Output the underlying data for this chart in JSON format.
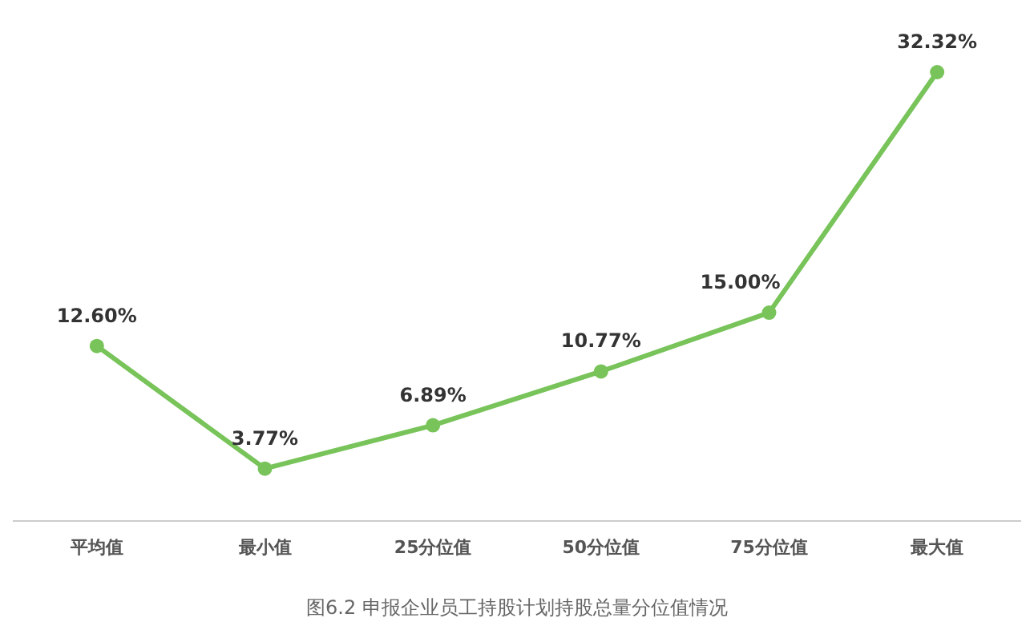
{
  "chart_data": {
    "type": "line",
    "title": "图6.2  申报企业员工持股计划持股总量分位值情况",
    "categories": [
      "平均值",
      "最小值",
      "25分位值",
      "50分位值",
      "75分位值",
      "最大值"
    ],
    "series": [
      {
        "color": "#78c45a",
        "values": [
          12.6,
          3.77,
          6.89,
          10.77,
          15.0,
          32.32
        ],
        "value_labels": [
          "12.60%",
          "3.77%",
          "6.89%",
          "10.77%",
          "15.00%",
          "32.32%"
        ]
      }
    ],
    "marker": "circle",
    "tick_labels": "x"
  }
}
